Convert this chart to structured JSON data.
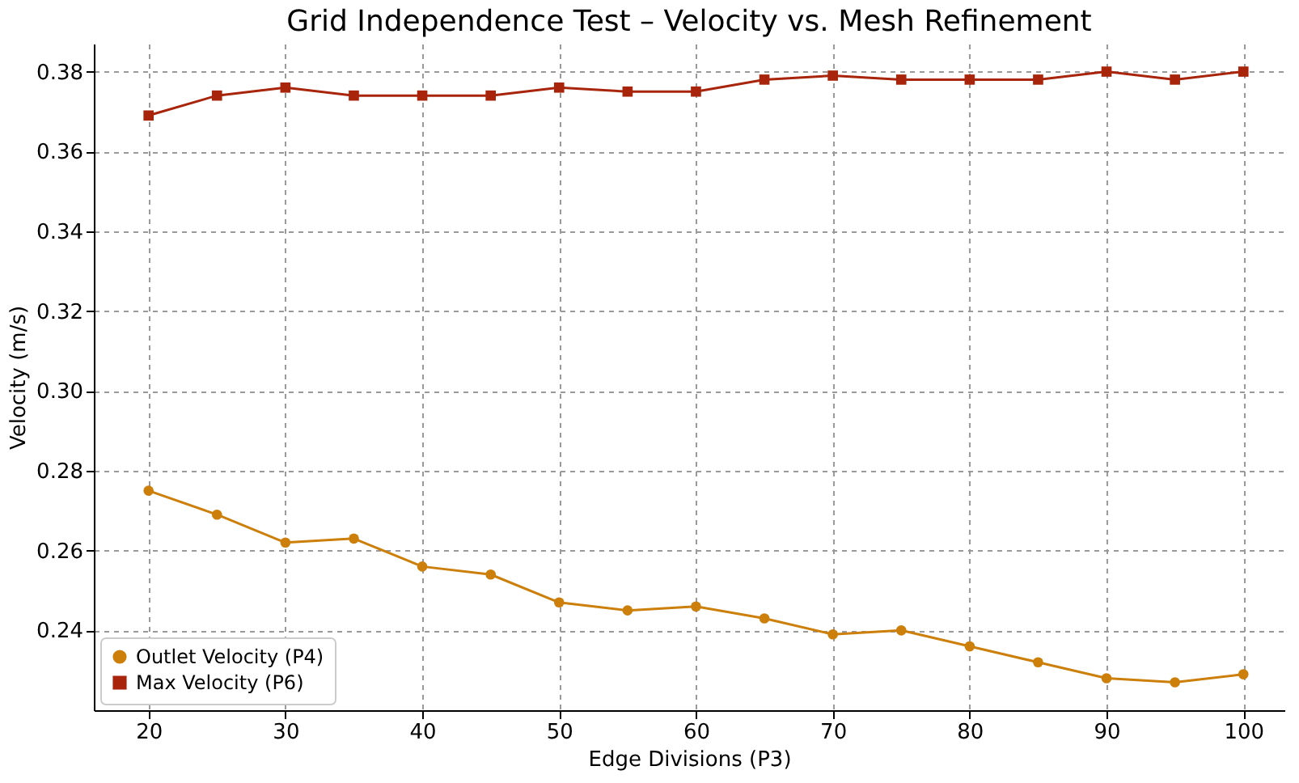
{
  "chart_data": {
    "type": "line",
    "title": "Grid Independence Test – Velocity vs. Mesh Refinement",
    "xlabel": "Edge Divisions (P3)",
    "ylabel": "Velocity (m/s)",
    "x": [
      20,
      25,
      30,
      35,
      40,
      45,
      50,
      55,
      60,
      65,
      70,
      75,
      80,
      85,
      90,
      95,
      100
    ],
    "series": [
      {
        "name": "Outlet Velocity (P4)",
        "color": "#cc7f0a",
        "marker": "circle",
        "values": [
          0.275,
          0.269,
          0.262,
          0.263,
          0.256,
          0.254,
          0.247,
          0.245,
          0.246,
          0.243,
          0.239,
          0.24,
          0.236,
          0.232,
          0.228,
          0.227,
          0.229
        ]
      },
      {
        "name": "Max Velocity (P6)",
        "color": "#a8250c",
        "marker": "square",
        "values": [
          0.369,
          0.374,
          0.376,
          0.374,
          0.374,
          0.374,
          0.376,
          0.375,
          0.375,
          0.378,
          0.379,
          0.378,
          0.378,
          0.378,
          0.38,
          0.378,
          0.38
        ]
      }
    ],
    "xlim": [
      16,
      103
    ],
    "xticks": [
      20,
      30,
      40,
      50,
      60,
      70,
      80,
      90,
      100
    ],
    "ylim": [
      0.22,
      0.387
    ],
    "yticks": [
      {
        "value": 0.24,
        "label": "0.24"
      },
      {
        "value": 0.26,
        "label": "0.26"
      },
      {
        "value": 0.28,
        "label": "0.28"
      },
      {
        "value": 0.3,
        "label": "0.30"
      },
      {
        "value": 0.32,
        "label": "0.32"
      },
      {
        "value": 0.34,
        "label": "0.34"
      },
      {
        "value": 0.36,
        "label": "0.36"
      },
      {
        "value": 0.38,
        "label": "0.38"
      }
    ],
    "grid": true,
    "legend": "bottom left",
    "line_style": "solid"
  }
}
